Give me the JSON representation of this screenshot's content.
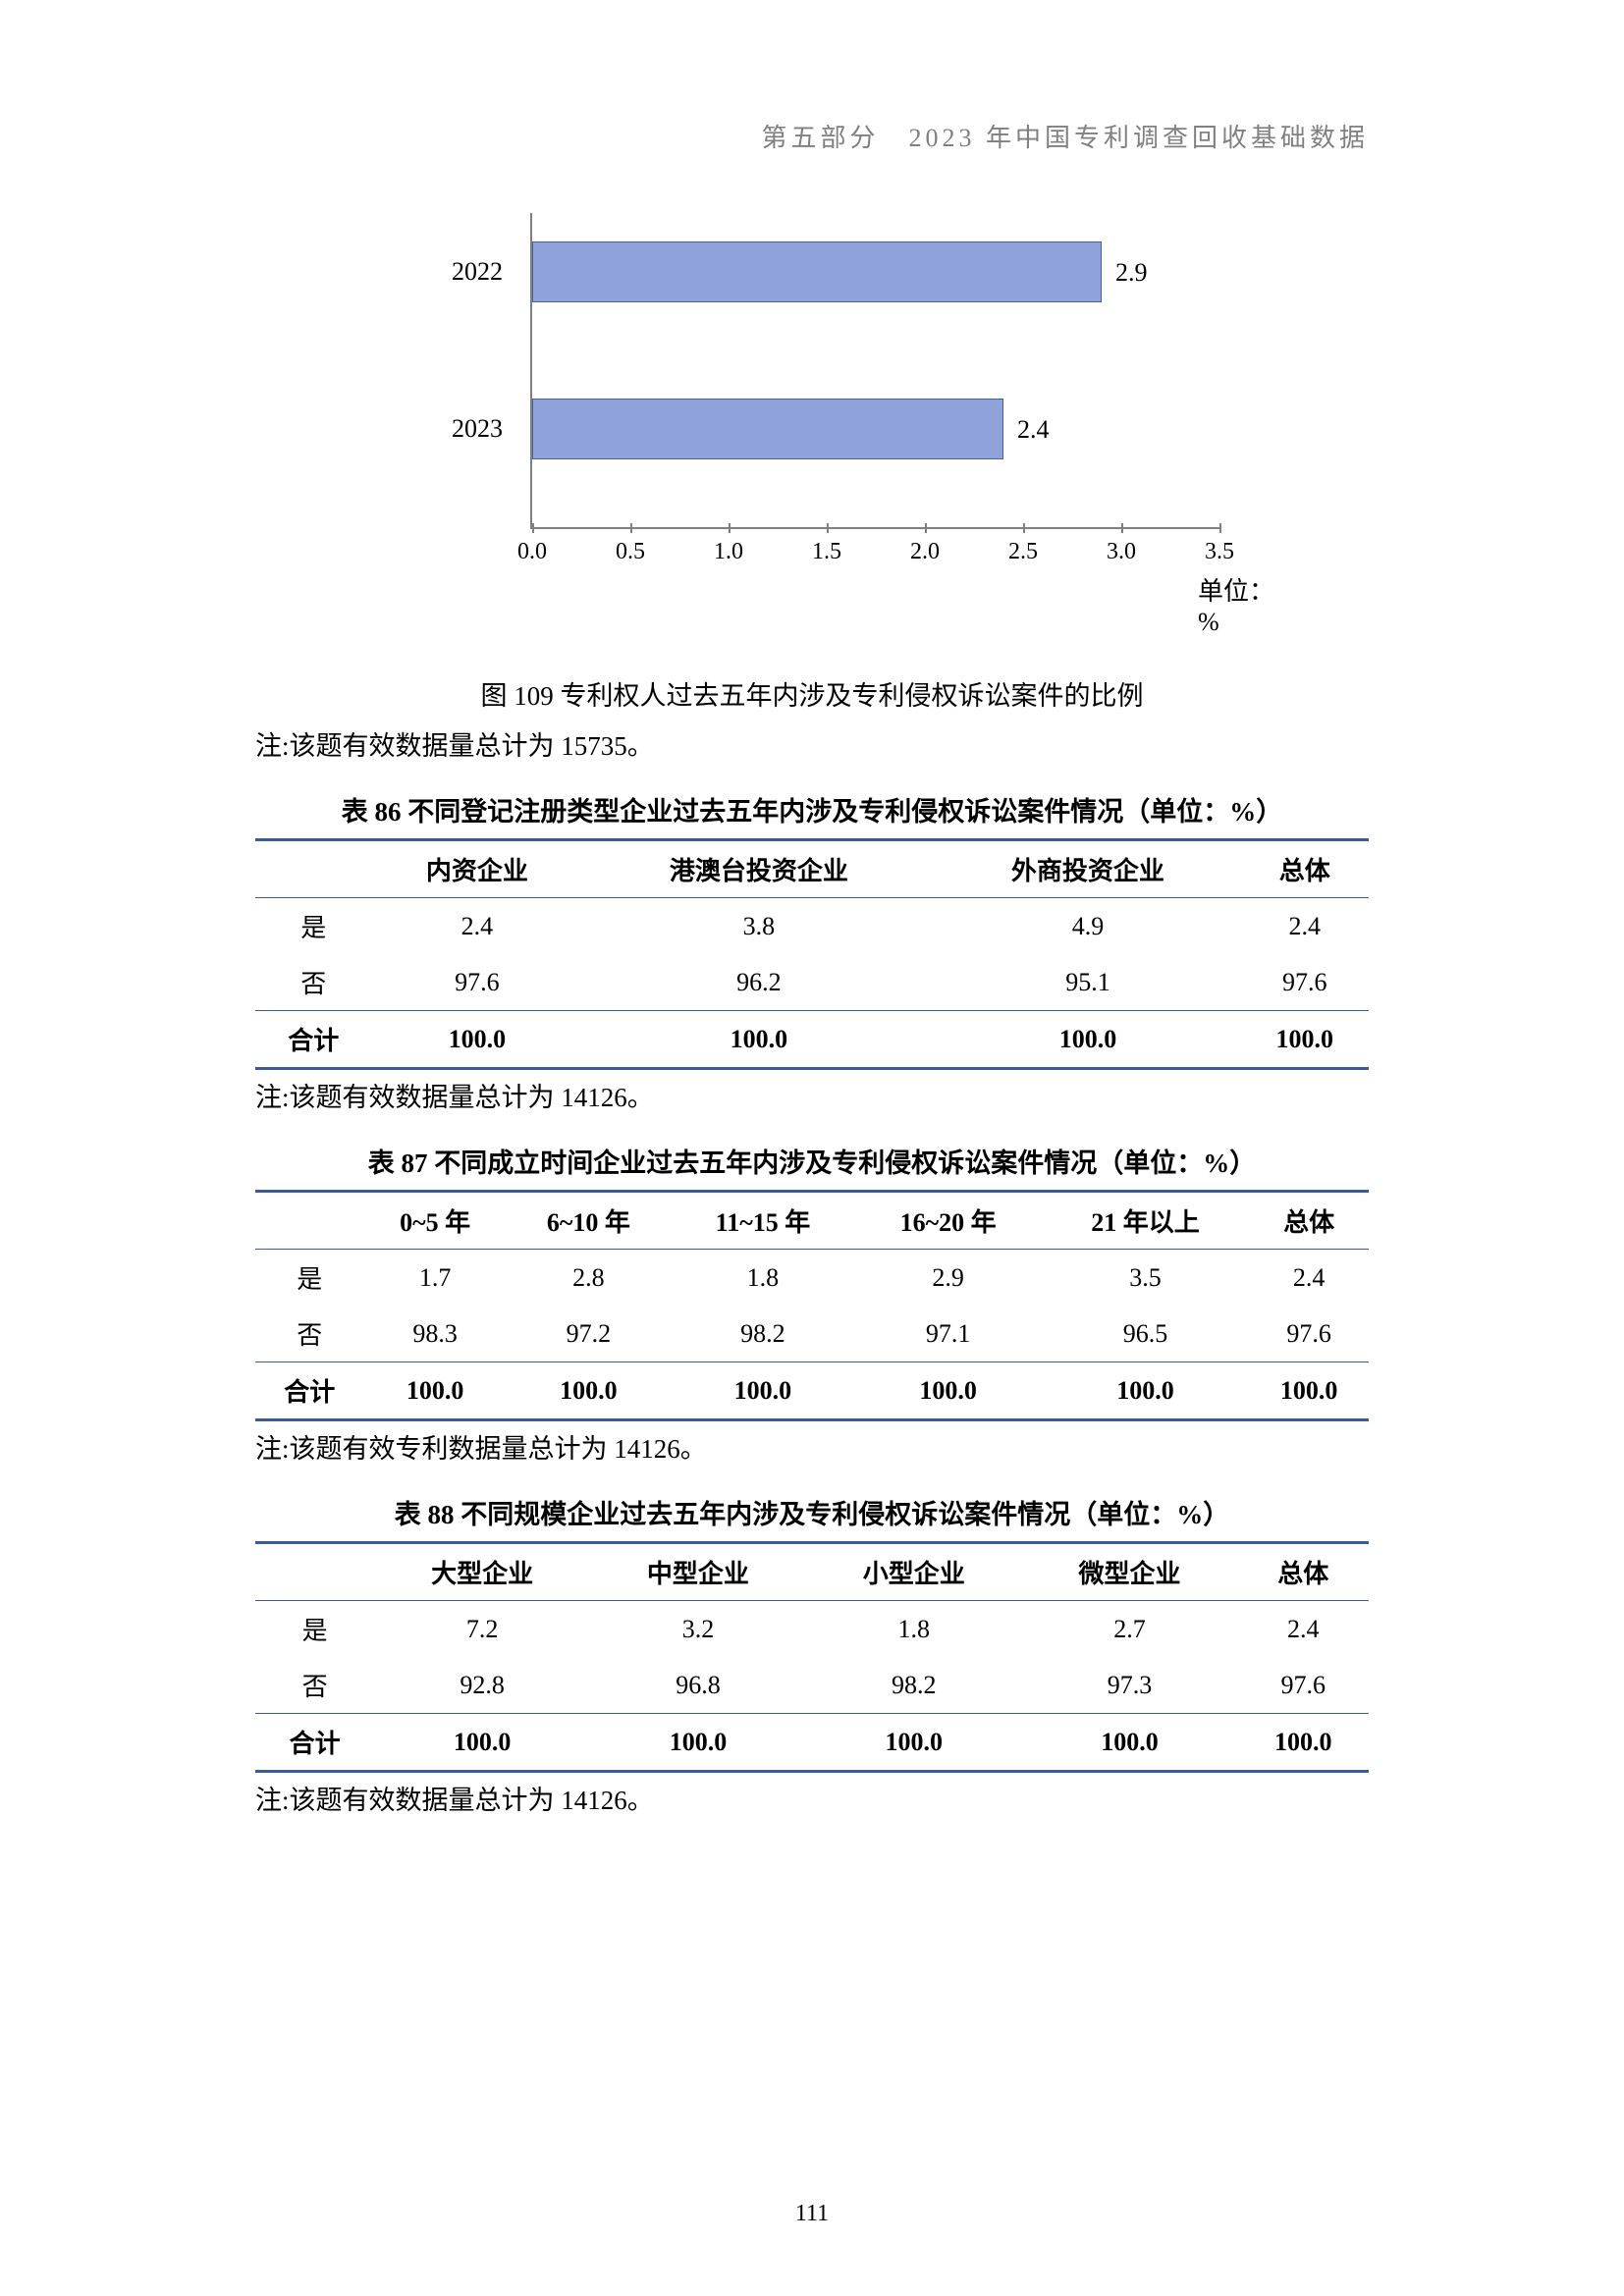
{
  "header": "第五部分　2023 年中国专利调查回收基础数据",
  "page_number": "111",
  "chart": {
    "type": "bar",
    "orientation": "horizontal",
    "x_min": 0.0,
    "x_max": 3.5,
    "x_tick_step": 0.5,
    "x_labels": [
      "0.0",
      "0.5",
      "1.0",
      "1.5",
      "2.0",
      "2.5",
      "3.0",
      "3.5"
    ],
    "x_unit": "单位：%",
    "bar_fill": "#8fa3da",
    "bar_border": "#4a5f9e",
    "axis_color": "#808080",
    "series": [
      {
        "label": "2022",
        "value": 2.9,
        "value_label": "2.9"
      },
      {
        "label": "2023",
        "value": 2.4,
        "value_label": "2.4"
      }
    ],
    "caption": "图 109  专利权人过去五年内涉及专利侵权诉讼案件的比例"
  },
  "note_fig": "注:该题有效数据量总计为 15735。",
  "table86": {
    "title": "表 86  不同登记注册类型企业过去五年内涉及专利侵权诉讼案件情况（单位：%）",
    "columns": [
      "",
      "内资企业",
      "港澳台投资企业",
      "外商投资企业",
      "总体"
    ],
    "rows": [
      [
        "是",
        "2.4",
        "3.8",
        "4.9",
        "2.4"
      ],
      [
        "否",
        "97.6",
        "96.2",
        "95.1",
        "97.6"
      ]
    ],
    "total_row": [
      "合计",
      "100.0",
      "100.0",
      "100.0",
      "100.0"
    ],
    "note": "注:该题有效数据量总计为 14126。"
  },
  "table87": {
    "title": "表 87  不同成立时间企业过去五年内涉及专利侵权诉讼案件情况（单位：%）",
    "columns": [
      "",
      "0~5 年",
      "6~10 年",
      "11~15 年",
      "16~20 年",
      "21 年以上",
      "总体"
    ],
    "rows": [
      [
        "是",
        "1.7",
        "2.8",
        "1.8",
        "2.9",
        "3.5",
        "2.4"
      ],
      [
        "否",
        "98.3",
        "97.2",
        "98.2",
        "97.1",
        "96.5",
        "97.6"
      ]
    ],
    "total_row": [
      "合计",
      "100.0",
      "100.0",
      "100.0",
      "100.0",
      "100.0",
      "100.0"
    ],
    "note": "注:该题有效专利数据量总计为 14126。"
  },
  "table88": {
    "title": "表 88  不同规模企业过去五年内涉及专利侵权诉讼案件情况（单位：%）",
    "columns": [
      "",
      "大型企业",
      "中型企业",
      "小型企业",
      "微型企业",
      "总体"
    ],
    "rows": [
      [
        "是",
        "7.2",
        "3.2",
        "1.8",
        "2.7",
        "2.4"
      ],
      [
        "否",
        "92.8",
        "96.8",
        "98.2",
        "97.3",
        "97.6"
      ]
    ],
    "total_row": [
      "合计",
      "100.0",
      "100.0",
      "100.0",
      "100.0",
      "100.0"
    ],
    "note": "注:该题有效数据量总计为 14126。"
  }
}
